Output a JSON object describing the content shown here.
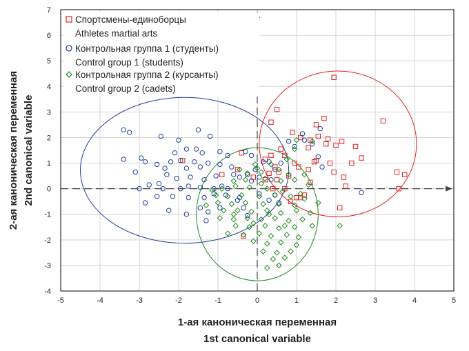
{
  "chart_data": {
    "type": "scatter",
    "xlim": [
      -5,
      5
    ],
    "ylim": [
      -4,
      7
    ],
    "x_ticks": [
      -5,
      -4,
      -3,
      -2,
      -1,
      0,
      1,
      2,
      3,
      4,
      5
    ],
    "y_ticks": [
      -4,
      -3,
      -2,
      -1,
      0,
      1,
      2,
      3,
      4,
      5,
      6,
      7
    ],
    "grid": true,
    "xlabel": {
      "line1": "1-ая каноническая переменная",
      "line2": "1st canonical variable"
    },
    "ylabel": {
      "line1": "2-ая каноническая переменная",
      "line2": "2nd canonical variable"
    },
    "legend": {
      "position": "top-left",
      "entries": [
        {
          "line1": "Спортсмены-единоборцы",
          "line2": "Athletes martial arts",
          "color": "#e02020",
          "marker": "square"
        },
        {
          "line1": "Контрольная группа 1 (студенты)",
          "line2": "Control group 1 (students)",
          "color": "#1f3f9a",
          "marker": "circle"
        },
        {
          "line1": "Контрольная группа 2 (курсанты)",
          "line2": "Control group 2 (cadets)",
          "color": "#1d8a1d",
          "marker": "diamond"
        }
      ]
    },
    "series": [
      {
        "name": "Спортсмены-единоборцы",
        "marker": "square",
        "color": "#e02020",
        "ellipse": {
          "cx": 2.05,
          "cy": 1.75,
          "rx": 2.0,
          "ry": 2.85
        },
        "points": [
          [
            1.95,
            4.35
          ],
          [
            3.2,
            2.65
          ],
          [
            0.5,
            3.1
          ],
          [
            1.7,
            2.75
          ],
          [
            0.35,
            2.6
          ],
          [
            1.5,
            2.5
          ],
          [
            1.55,
            2.05
          ],
          [
            0.9,
            2.2
          ],
          [
            1.1,
            2.0
          ],
          [
            1.35,
            1.9
          ],
          [
            1.8,
            1.95
          ],
          [
            2.15,
            1.85
          ],
          [
            2.5,
            1.65
          ],
          [
            2.0,
            1.7
          ],
          [
            0.6,
            1.55
          ],
          [
            1.3,
            1.6
          ],
          [
            1.75,
            1.75
          ],
          [
            2.65,
            1.2
          ],
          [
            0.7,
            1.3
          ],
          [
            0.95,
            1.0
          ],
          [
            1.5,
            1.1
          ],
          [
            1.85,
            1.0
          ],
          [
            2.4,
            1.0
          ],
          [
            3.55,
            0.65
          ],
          [
            3.75,
            0.55
          ],
          [
            1.45,
            1.05
          ],
          [
            0.45,
            0.85
          ],
          [
            1.05,
            0.85
          ],
          [
            0.55,
            0.65
          ],
          [
            1.3,
            0.75
          ],
          [
            1.95,
            0.65
          ],
          [
            2.2,
            0.45
          ],
          [
            0.8,
            0.5
          ],
          [
            1.35,
            0.25
          ],
          [
            2.25,
            0.1
          ],
          [
            3.6,
            0.0
          ],
          [
            0.7,
            0.0
          ],
          [
            1.0,
            -0.35
          ],
          [
            1.1,
            -0.35
          ],
          [
            0.85,
            -0.5
          ],
          [
            1.2,
            -0.25
          ],
          [
            2.1,
            -0.75
          ],
          [
            -0.4,
            1.4
          ],
          [
            -0.5,
            0.75
          ],
          [
            -0.9,
            0.55
          ],
          [
            -0.1,
            0.45
          ],
          [
            0.2,
            0.35
          ],
          [
            0.3,
            0.6
          ],
          [
            0.5,
            0.35
          ],
          [
            0.4,
            0.0
          ],
          [
            -1.9,
            1.1
          ],
          [
            -0.35,
            -1.85
          ],
          [
            0.35,
            1.3
          ],
          [
            0.2,
            1.15
          ]
        ]
      },
      {
        "name": "Контрольная группа 1 (студенты)",
        "marker": "circle",
        "color": "#1f3f9a",
        "ellipse": {
          "cx": -1.85,
          "cy": 0.72,
          "rx": 2.65,
          "ry": 2.85
        },
        "points": [
          [
            -3.4,
            2.3
          ],
          [
            -3.25,
            2.2
          ],
          [
            -2.45,
            2.05
          ],
          [
            -2.0,
            1.9
          ],
          [
            -1.5,
            2.3
          ],
          [
            -1.2,
            2.05
          ],
          [
            -1.55,
            1.55
          ],
          [
            -1.8,
            1.55
          ],
          [
            -2.1,
            1.4
          ],
          [
            -1.4,
            1.4
          ],
          [
            -0.95,
            1.45
          ],
          [
            -0.75,
            1.3
          ],
          [
            -0.3,
            1.45
          ],
          [
            -0.15,
            1.3
          ],
          [
            -2.95,
            1.2
          ],
          [
            -3.4,
            1.15
          ],
          [
            -2.85,
            1.05
          ],
          [
            -2.2,
            1.05
          ],
          [
            -2.55,
            0.95
          ],
          [
            -1.95,
            1.1
          ],
          [
            -1.6,
            1.05
          ],
          [
            -1.25,
            1.0
          ],
          [
            -0.95,
            0.95
          ],
          [
            -0.65,
            0.85
          ],
          [
            -1.45,
            0.85
          ],
          [
            -1.8,
            0.8
          ],
          [
            -2.35,
            0.8
          ],
          [
            -3.1,
            0.65
          ],
          [
            -2.3,
            0.55
          ],
          [
            -2.05,
            0.4
          ],
          [
            -1.7,
            0.45
          ],
          [
            -1.35,
            0.35
          ],
          [
            -1.05,
            0.5
          ],
          [
            -0.6,
            0.55
          ],
          [
            -0.45,
            0.45
          ],
          [
            -0.25,
            0.55
          ],
          [
            -2.5,
            0.2
          ],
          [
            -2.75,
            0.15
          ],
          [
            -1.75,
            0.1
          ],
          [
            -1.45,
            0.05
          ],
          [
            -0.9,
            0.1
          ],
          [
            -3.0,
            0.0
          ],
          [
            -2.4,
            0.0
          ],
          [
            -1.95,
            0.0
          ],
          [
            -1.1,
            0.0
          ],
          [
            -0.75,
            0.0
          ],
          [
            -2.55,
            -0.3
          ],
          [
            -2.15,
            -0.3
          ],
          [
            -1.75,
            -0.35
          ],
          [
            -1.35,
            -0.35
          ],
          [
            -1.1,
            -0.2
          ],
          [
            -0.8,
            -0.25
          ],
          [
            -0.45,
            -0.35
          ],
          [
            -2.85,
            -0.55
          ],
          [
            -2.25,
            -0.85
          ],
          [
            -1.45,
            -0.75
          ],
          [
            -1.25,
            -0.9
          ],
          [
            -0.95,
            -0.75
          ],
          [
            -0.35,
            -0.75
          ],
          [
            -0.25,
            -1.05
          ],
          [
            -1.8,
            -1.0
          ],
          [
            -1.3,
            -1.25
          ],
          [
            -0.5,
            -0.45
          ],
          [
            0.05,
            -0.2
          ],
          [
            0.3,
            -0.45
          ],
          [
            0.55,
            -0.55
          ],
          [
            0.45,
            -0.25
          ],
          [
            0.8,
            1.85
          ],
          [
            0.95,
            1.65
          ],
          [
            1.15,
            2.15
          ],
          [
            1.6,
            2.35
          ],
          [
            1.2,
            1.9
          ],
          [
            1.4,
            1.75
          ],
          [
            1.55,
            1.25
          ],
          [
            1.65,
            0.85
          ],
          [
            2.65,
            -0.15
          ],
          [
            0.15,
            1.05
          ],
          [
            0.3,
            1.05
          ],
          [
            0.6,
            1.0
          ],
          [
            0.45,
            0.75
          ],
          [
            0.35,
            0.35
          ],
          [
            0.05,
            0.45
          ],
          [
            -0.05,
            0.75
          ],
          [
            -0.15,
            0.3
          ]
        ]
      },
      {
        "name": "Контрольная группа 2 (курсанты)",
        "marker": "diamond",
        "color": "#1d8a1d",
        "ellipse": {
          "cx": 0.0,
          "cy": -1.0,
          "rx": 1.55,
          "ry": 2.6
        },
        "points": [
          [
            -0.05,
            0.95
          ],
          [
            0.35,
            0.95
          ],
          [
            0.75,
            1.15
          ],
          [
            0.95,
            1.55
          ],
          [
            1.0,
            1.9
          ],
          [
            1.4,
            1.85
          ],
          [
            -0.25,
            0.6
          ],
          [
            0.1,
            0.65
          ],
          [
            0.55,
            0.75
          ],
          [
            0.8,
            0.55
          ],
          [
            -0.6,
            0.3
          ],
          [
            -0.3,
            0.35
          ],
          [
            0.2,
            0.4
          ],
          [
            0.6,
            0.3
          ],
          [
            0.95,
            0.35
          ],
          [
            -0.9,
            0.0
          ],
          [
            -0.55,
            0.1
          ],
          [
            -0.2,
            0.05
          ],
          [
            0.25,
            0.0
          ],
          [
            0.65,
            -0.1
          ],
          [
            1.1,
            -0.2
          ],
          [
            -1.05,
            -0.25
          ],
          [
            -0.75,
            -0.3
          ],
          [
            -0.4,
            -0.25
          ],
          [
            0.05,
            -0.3
          ],
          [
            0.45,
            -0.25
          ],
          [
            0.85,
            -0.3
          ],
          [
            1.2,
            -0.4
          ],
          [
            -1.0,
            -0.55
          ],
          [
            -0.65,
            -0.6
          ],
          [
            -0.3,
            -0.55
          ],
          [
            0.15,
            -0.6
          ],
          [
            0.55,
            -0.6
          ],
          [
            0.95,
            -0.65
          ],
          [
            -0.85,
            -0.85
          ],
          [
            -0.5,
            -0.85
          ],
          [
            -0.15,
            -0.9
          ],
          [
            0.25,
            -0.85
          ],
          [
            0.6,
            -0.95
          ],
          [
            1.0,
            -0.85
          ],
          [
            1.35,
            -0.95
          ],
          [
            -0.95,
            -1.15
          ],
          [
            -0.6,
            -1.2
          ],
          [
            -0.25,
            -1.15
          ],
          [
            0.1,
            -1.2
          ],
          [
            0.45,
            -1.15
          ],
          [
            0.8,
            -1.25
          ],
          [
            1.15,
            -1.2
          ],
          [
            -0.55,
            -1.45
          ],
          [
            -0.2,
            -1.5
          ],
          [
            0.2,
            -1.45
          ],
          [
            0.55,
            -1.55
          ],
          [
            0.95,
            -1.5
          ],
          [
            1.4,
            -1.45
          ],
          [
            -0.75,
            -1.75
          ],
          [
            -0.35,
            -1.8
          ],
          [
            0.05,
            -1.75
          ],
          [
            0.35,
            -1.85
          ],
          [
            0.75,
            -1.8
          ],
          [
            1.05,
            -1.9
          ],
          [
            -0.1,
            -2.05
          ],
          [
            0.25,
            -2.15
          ],
          [
            0.6,
            -2.1
          ],
          [
            1.0,
            -2.2
          ],
          [
            0.15,
            -2.45
          ],
          [
            0.5,
            -2.5
          ],
          [
            0.85,
            -2.45
          ],
          [
            0.4,
            -2.75
          ],
          [
            0.7,
            -2.7
          ],
          [
            0.55,
            -3.0
          ],
          [
            0.25,
            -3.1
          ],
          [
            2.1,
            -1.45
          ],
          [
            1.55,
            -0.55
          ],
          [
            -0.45,
            0.75
          ],
          [
            0.0,
            0.8
          ],
          [
            -1.3,
            -0.65
          ],
          [
            -1.15,
            -0.05
          ],
          [
            0.3,
            -1.0
          ],
          [
            -0.1,
            -1.35
          ],
          [
            0.7,
            -1.45
          ],
          [
            1.3,
            0.15
          ],
          [
            1.2,
            0.55
          ],
          [
            0.1,
            0.2
          ],
          [
            -0.6,
            -1.0
          ]
        ]
      }
    ]
  }
}
